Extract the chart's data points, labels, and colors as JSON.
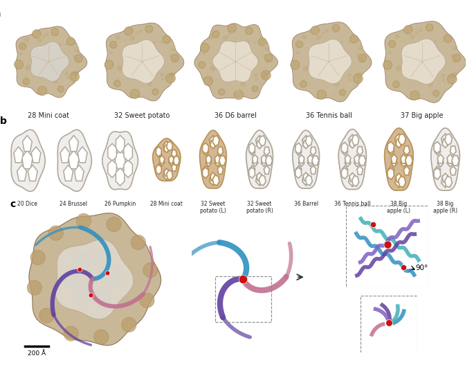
{
  "panel_a_labels": [
    "28 Mini coat",
    "32 Sweet potato",
    "36 D6 barrel",
    "36 Tennis ball",
    "37 Big apple"
  ],
  "panel_b_labels": [
    "20 Dice",
    "24 Brussel",
    "26 Pumpkin",
    "28 Mini coat",
    "32 Sweet\npotato (L)",
    "32 Sweet\npotato (R)",
    "36 Barrel",
    "36 Tennis ball",
    "38 Big\napple (L)",
    "38 Big\napple (R)"
  ],
  "panel_letters": [
    "a",
    "b",
    "c"
  ],
  "scale_bar_label": "200 Å",
  "bg_color": "#ffffff",
  "cage_fill_gold": "#d4b896",
  "cage_fill_white": "#f0eeec",
  "cage_edge_gold": "#b8955a",
  "cage_edge_gray": "#b0a898",
  "cryo_outer": "#c8b898",
  "cryo_inner": "#e8e0d0",
  "blue_color": "#3090c0",
  "purple_color": "#6040a0",
  "pink_color": "#c07090",
  "red_color": "#cc1010",
  "text_color": "#222222",
  "arrow_color": "#333333",
  "panel_b_filled": [
    false,
    false,
    false,
    true,
    true,
    false,
    false,
    false,
    true,
    false
  ],
  "panel_b_sizes": [
    0.55,
    0.62,
    0.68,
    0.75,
    0.82,
    0.82,
    0.82,
    0.85,
    0.88,
    0.88
  ]
}
